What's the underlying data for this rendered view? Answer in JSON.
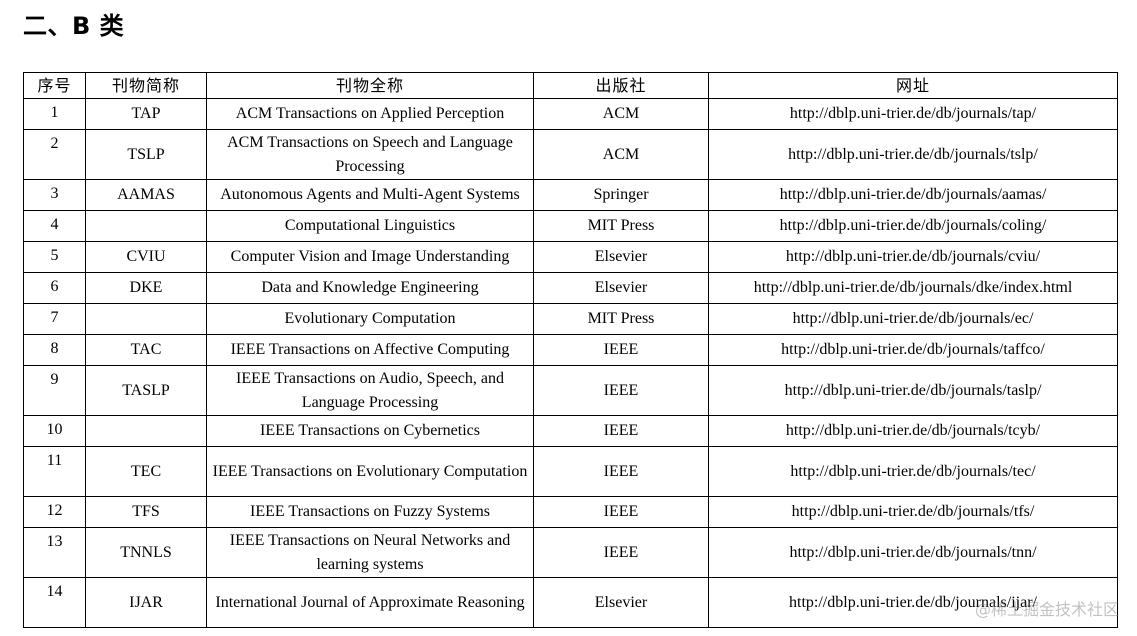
{
  "heading": "二、B 类",
  "table": {
    "headers": [
      "序号",
      "刊物简称",
      "刊物全称",
      "出版社",
      "网址"
    ],
    "rows": [
      {
        "index": "1",
        "abbr": "TAP",
        "full": "ACM Transactions on Applied Perception",
        "publisher": "ACM",
        "url": "http://dblp.uni-trier.de/db/journals/tap/"
      },
      {
        "index": "2",
        "abbr": "TSLP",
        "full": "ACM Transactions on Speech and Language Processing",
        "publisher": "ACM",
        "url": "http://dblp.uni-trier.de/db/journals/tslp/"
      },
      {
        "index": "3",
        "abbr": "AAMAS",
        "full": "Autonomous Agents and Multi-Agent Systems",
        "publisher": "Springer",
        "url": "http://dblp.uni-trier.de/db/journals/aamas/"
      },
      {
        "index": "4",
        "abbr": "",
        "full": "Computational Linguistics",
        "publisher": "MIT Press",
        "url": "http://dblp.uni-trier.de/db/journals/coling/"
      },
      {
        "index": "5",
        "abbr": "CVIU",
        "full": "Computer Vision and Image Understanding",
        "publisher": "Elsevier",
        "url": "http://dblp.uni-trier.de/db/journals/cviu/"
      },
      {
        "index": "6",
        "abbr": "DKE",
        "full": "Data and Knowledge Engineering",
        "publisher": "Elsevier",
        "url": "http://dblp.uni-trier.de/db/journals/dke/index.html"
      },
      {
        "index": "7",
        "abbr": "",
        "full": "Evolutionary Computation",
        "publisher": "MIT Press",
        "url": "http://dblp.uni-trier.de/db/journals/ec/"
      },
      {
        "index": "8",
        "abbr": "TAC",
        "full": "IEEE Transactions on Affective Computing",
        "publisher": "IEEE",
        "url": "http://dblp.uni-trier.de/db/journals/taffco/"
      },
      {
        "index": "9",
        "abbr": "TASLP",
        "full": "IEEE Transactions on Audio, Speech, and Language Processing",
        "publisher": "IEEE",
        "url": "http://dblp.uni-trier.de/db/journals/taslp/"
      },
      {
        "index": "10",
        "abbr": "",
        "full": "IEEE Transactions on Cybernetics",
        "publisher": "IEEE",
        "url": "http://dblp.uni-trier.de/db/journals/tcyb/"
      },
      {
        "index": "11",
        "abbr": "TEC",
        "full": "IEEE Transactions on Evolutionary Computation",
        "publisher": "IEEE",
        "url": "http://dblp.uni-trier.de/db/journals/tec/"
      },
      {
        "index": "12",
        "abbr": "TFS",
        "full": "IEEE Transactions on Fuzzy Systems",
        "publisher": "IEEE",
        "url": "http://dblp.uni-trier.de/db/journals/tfs/"
      },
      {
        "index": "13",
        "abbr": "TNNLS",
        "full": "IEEE Transactions on Neural Networks and learning systems",
        "publisher": "IEEE",
        "url": "http://dblp.uni-trier.de/db/journals/tnn/"
      },
      {
        "index": "14",
        "abbr": "IJAR",
        "full": "International Journal of Approximate Reasoning",
        "publisher": "Elsevier",
        "url": "http://dblp.uni-trier.de/db/journals/ijar/"
      }
    ]
  },
  "watermark": "@稀土掘金技术社区"
}
